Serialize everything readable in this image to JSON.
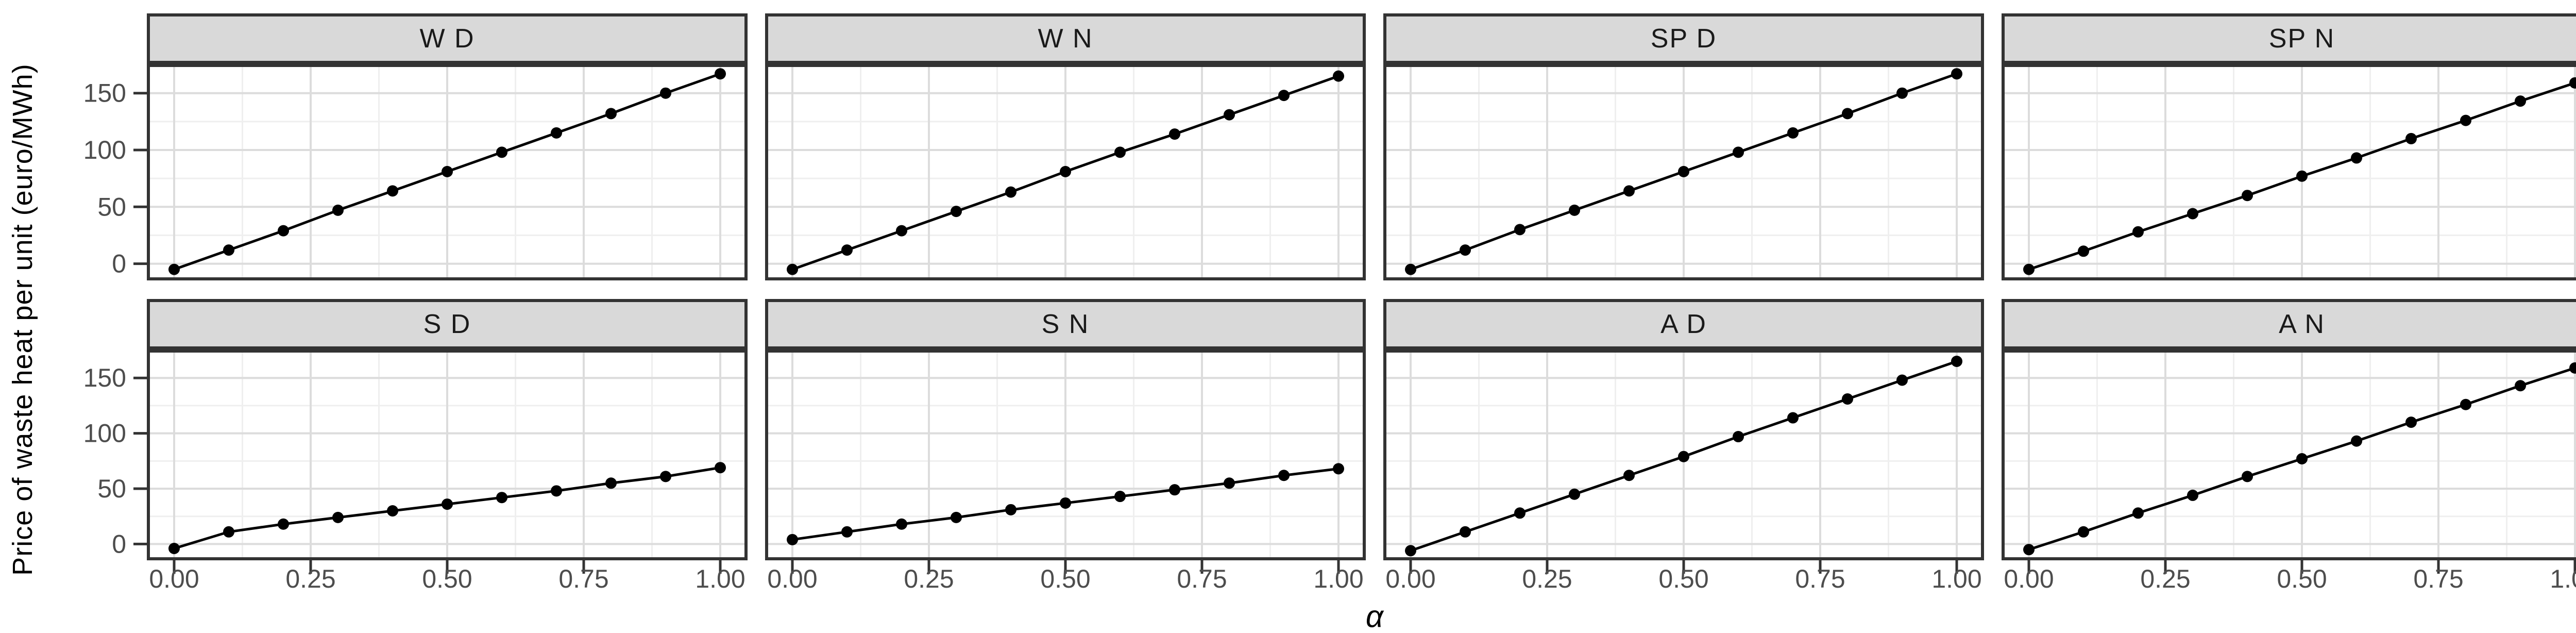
{
  "figure": {
    "y_axis_title": "Price of waste heat per unit (euro/MWh)",
    "x_axis_title": "α",
    "colors": {
      "panel_bg": "#ffffff",
      "strip_fill": "#d9d9d9",
      "panel_border": "#333333",
      "grid_major": "#dcdcdc",
      "grid_minor": "#efefef",
      "series": "#000000",
      "tick": "#333333",
      "tick_label": "#4d4d4d",
      "strip_label": "#1a1a1a",
      "axis_title": "#000000"
    }
  },
  "chart_data": {
    "type": "line",
    "title": "",
    "xlabel": "α",
    "ylabel": "Price of waste heat per unit (euro/MWh)",
    "legend": "none",
    "grid": true,
    "facet_layout": {
      "rows": 2,
      "cols": 4
    },
    "x": [
      0,
      0.1,
      0.2,
      0.3,
      0.4,
      0.5,
      0.6,
      0.7,
      0.8,
      0.9,
      1.0
    ],
    "xlim": [
      -0.05,
      1.05
    ],
    "ylim": [
      -14.7,
      175.7
    ],
    "x_major_ticks": [
      0,
      0.25,
      0.5,
      0.75,
      1.0
    ],
    "x_minor_ticks": [
      0.125,
      0.375,
      0.625,
      0.875
    ],
    "y_major_ticks": [
      0,
      50,
      100,
      150
    ],
    "y_minor_ticks": [
      25,
      75,
      125
    ],
    "x_tick_labels": [
      "0.00",
      "0.25",
      "0.50",
      "0.75",
      "1.00"
    ],
    "y_tick_labels": [
      "0",
      "50",
      "100",
      "150"
    ],
    "facets": [
      {
        "label": "W D",
        "values": [
          -5,
          12,
          29,
          47,
          64,
          81,
          98,
          115,
          132,
          150,
          167
        ]
      },
      {
        "label": "W N",
        "values": [
          -5,
          12,
          29,
          46,
          63,
          81,
          98,
          114,
          131,
          148,
          165
        ]
      },
      {
        "label": "SP D",
        "values": [
          -5,
          12,
          30,
          47,
          64,
          81,
          98,
          115,
          132,
          150,
          167
        ]
      },
      {
        "label": "SP N",
        "values": [
          -5,
          11,
          28,
          44,
          60,
          77,
          93,
          110,
          126,
          143,
          159
        ]
      },
      {
        "label": "S D",
        "values": [
          -4,
          11,
          18,
          24,
          30,
          36,
          42,
          48,
          55,
          61,
          69
        ]
      },
      {
        "label": "S N",
        "values": [
          4,
          11,
          18,
          24,
          31,
          37,
          43,
          49,
          55,
          62,
          68
        ]
      },
      {
        "label": "A D",
        "values": [
          -6,
          11,
          28,
          45,
          62,
          79,
          97,
          114,
          131,
          148,
          165
        ]
      },
      {
        "label": "A N",
        "values": [
          -5,
          11,
          28,
          44,
          61,
          77,
          93,
          110,
          126,
          143,
          159
        ]
      }
    ]
  }
}
